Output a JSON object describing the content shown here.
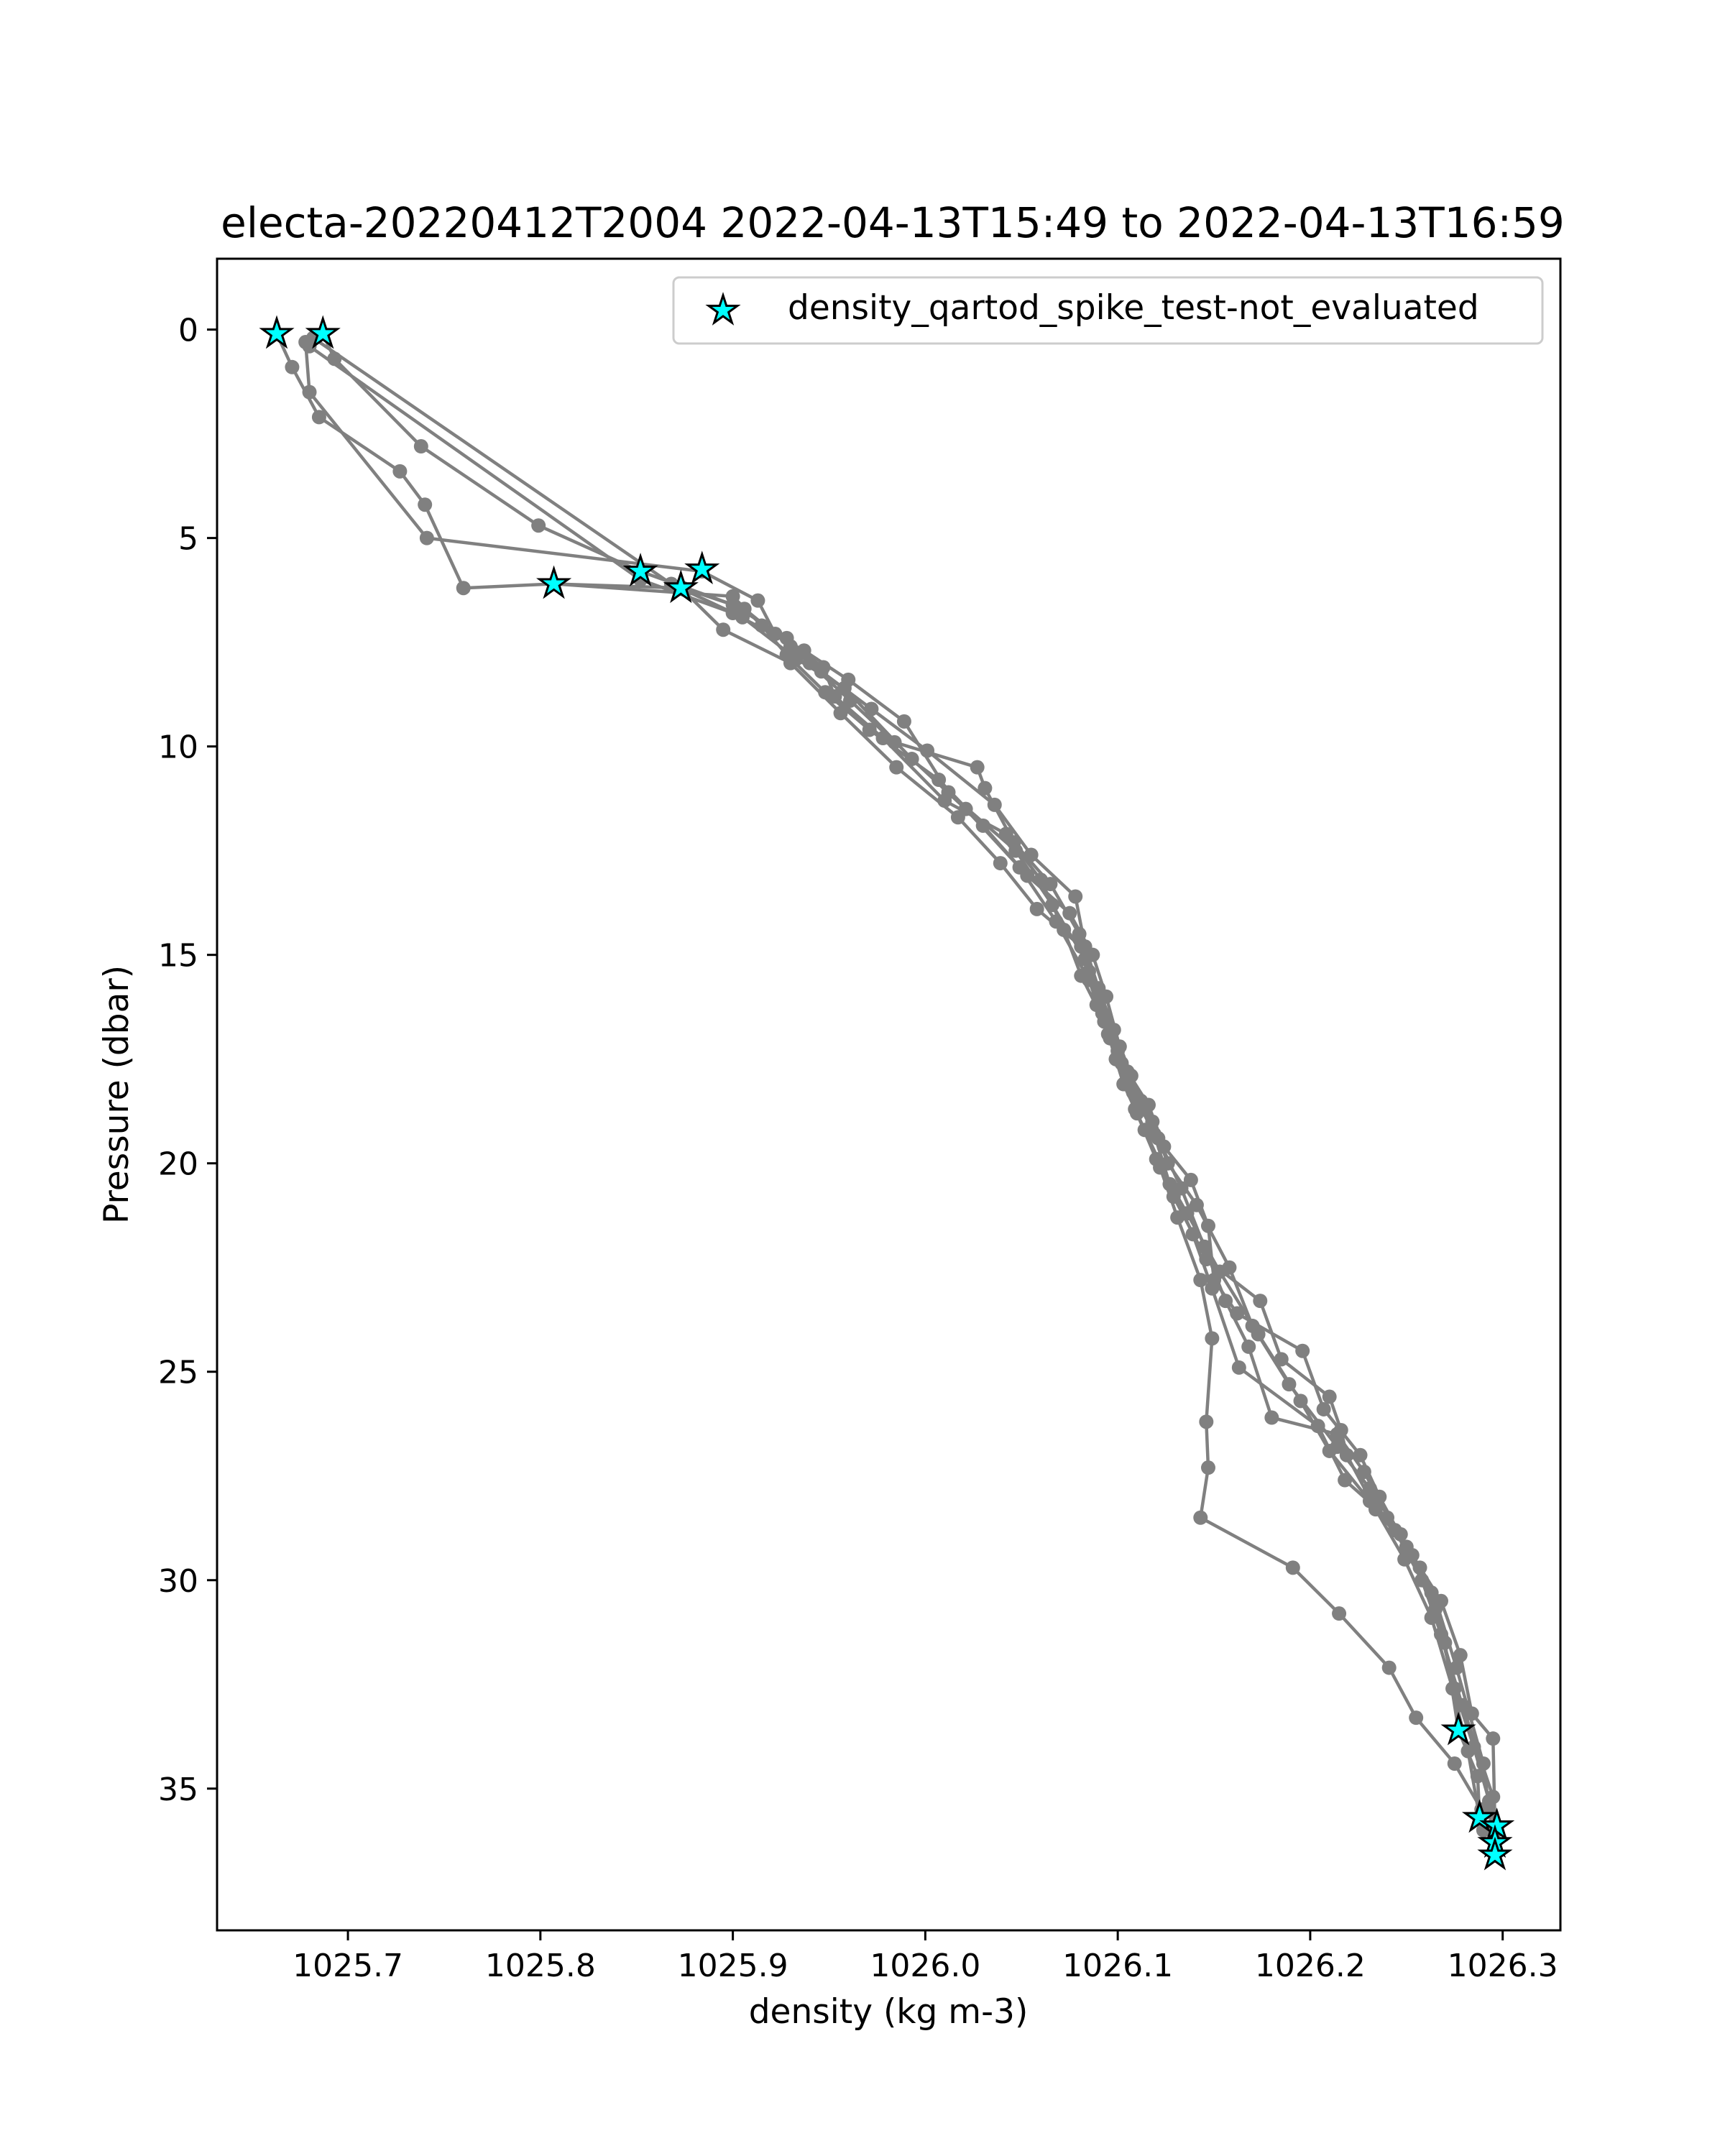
{
  "chart_data": {
    "type": "scatter",
    "title": "electa-20220412T2004 2022-04-13T15:49 to 2022-04-13T16:59",
    "xlabel": "density (kg m-3)",
    "ylabel": "Pressure (dbar)",
    "xlim": [
      1025.632,
      1026.33
    ],
    "ylim": [
      38.4,
      -1.7
    ],
    "y_inverted": true,
    "grid": false,
    "legend_position": "top-right",
    "x_ticks": [
      "1025.7",
      "1025.8",
      "1025.9",
      "1026.0",
      "1026.1",
      "1026.2",
      "1026.3"
    ],
    "y_ticks": [
      "0",
      "5",
      "10",
      "15",
      "20",
      "25",
      "30",
      "35"
    ],
    "colors": {
      "profile_line": "#808080",
      "flag_marker": "#00ffff",
      "marker_edge": "#000000"
    },
    "series": [
      {
        "kind": "line",
        "points": [
          [
            1025.687,
            0.1
          ],
          [
            1025.693,
            0.7
          ],
          [
            1025.738,
            2.8
          ],
          [
            1025.799,
            4.7
          ],
          [
            1025.852,
            5.8
          ],
          [
            1025.906,
            6.7
          ],
          [
            1025.93,
            7.6
          ],
          [
            1025.94,
            8.0
          ],
          [
            1025.961,
            8.9
          ],
          [
            1025.984,
            9.9
          ],
          [
            1026.027,
            10.5
          ],
          [
            1026.031,
            11.0
          ],
          [
            1026.046,
            12.3
          ],
          [
            1026.065,
            13.3
          ],
          [
            1026.08,
            14.5
          ],
          [
            1026.085,
            15.4
          ],
          [
            1026.089,
            16.2
          ],
          [
            1026.096,
            17.0
          ],
          [
            1026.105,
            17.8
          ],
          [
            1026.116,
            18.6
          ],
          [
            1026.124,
            19.6
          ],
          [
            1026.138,
            20.4
          ],
          [
            1026.147,
            21.5
          ],
          [
            1026.15,
            22.8
          ],
          [
            1026.162,
            23.6
          ],
          [
            1026.196,
            24.5
          ],
          [
            1026.207,
            25.9
          ],
          [
            1026.226,
            27.0
          ],
          [
            1026.236,
            28.0
          ],
          [
            1026.25,
            29.2
          ],
          [
            1026.263,
            30.3
          ],
          [
            1026.27,
            31.5
          ],
          [
            1026.277,
            33.6
          ],
          [
            1026.287,
            34.7
          ],
          [
            1026.288,
            35.7
          ]
        ]
      },
      {
        "kind": "line",
        "points": [
          [
            1025.663,
            0.1
          ],
          [
            1025.671,
            0.9
          ],
          [
            1025.685,
            2.1
          ],
          [
            1025.727,
            3.4
          ],
          [
            1025.74,
            4.2
          ],
          [
            1025.76,
            6.2
          ],
          [
            1025.807,
            6.1
          ],
          [
            1025.874,
            6.2
          ],
          [
            1025.9,
            6.6
          ],
          [
            1025.928,
            7.4
          ],
          [
            1025.946,
            8.2
          ],
          [
            1025.972,
            9.1
          ],
          [
            1026.001,
            10.1
          ],
          [
            1026.036,
            11.4
          ],
          [
            1026.055,
            12.6
          ],
          [
            1026.078,
            13.6
          ],
          [
            1026.083,
            14.8
          ],
          [
            1026.09,
            15.8
          ],
          [
            1026.098,
            16.8
          ],
          [
            1026.107,
            17.9
          ],
          [
            1026.118,
            19.0
          ],
          [
            1026.126,
            20.0
          ],
          [
            1026.141,
            21.0
          ],
          [
            1026.158,
            22.5
          ],
          [
            1026.17,
            23.9
          ],
          [
            1026.189,
            25.3
          ],
          [
            1026.214,
            26.8
          ],
          [
            1026.231,
            27.8
          ],
          [
            1026.247,
            28.9
          ],
          [
            1026.265,
            30.7
          ],
          [
            1026.275,
            32.6
          ],
          [
            1026.285,
            34.0
          ],
          [
            1026.293,
            35.3
          ],
          [
            1026.297,
            36.0
          ]
        ]
      },
      {
        "kind": "line",
        "points": [
          [
            1025.678,
            0.3
          ],
          [
            1025.68,
            1.5
          ],
          [
            1025.741,
            5.0
          ],
          [
            1025.884,
            5.8
          ],
          [
            1025.913,
            6.5
          ],
          [
            1025.922,
            7.3
          ],
          [
            1025.947,
            8.1
          ],
          [
            1025.953,
            8.8
          ],
          [
            1025.978,
            9.8
          ],
          [
            1026.01,
            11.3
          ],
          [
            1026.042,
            12.1
          ],
          [
            1026.06,
            13.2
          ],
          [
            1026.072,
            14.4
          ],
          [
            1026.081,
            15.5
          ],
          [
            1026.093,
            16.6
          ],
          [
            1026.102,
            17.6
          ],
          [
            1026.112,
            18.5
          ],
          [
            1026.121,
            19.4
          ],
          [
            1026.133,
            20.6
          ],
          [
            1026.145,
            22.0
          ],
          [
            1026.156,
            23.3
          ],
          [
            1026.168,
            24.4
          ],
          [
            1026.18,
            26.1
          ],
          [
            1026.214,
            26.5
          ],
          [
            1026.228,
            27.4
          ],
          [
            1026.244,
            28.8
          ],
          [
            1026.258,
            30.0
          ],
          [
            1026.268,
            31.3
          ],
          [
            1026.279,
            33.0
          ],
          [
            1026.295,
            35.2
          ],
          [
            1026.296,
            36.3
          ]
        ]
      },
      {
        "kind": "line",
        "points": [
          [
            1025.682,
            0.2
          ],
          [
            1025.868,
            6.1
          ],
          [
            1025.905,
            6.9
          ],
          [
            1025.933,
            7.9
          ],
          [
            1025.958,
            8.6
          ],
          [
            1025.993,
            10.3
          ],
          [
            1026.021,
            11.5
          ],
          [
            1026.049,
            12.9
          ],
          [
            1026.068,
            14.2
          ],
          [
            1026.085,
            15.6
          ],
          [
            1026.095,
            16.9
          ],
          [
            1026.103,
            18.1
          ],
          [
            1026.114,
            19.2
          ],
          [
            1026.127,
            20.5
          ],
          [
            1026.139,
            21.7
          ],
          [
            1026.149,
            23.0
          ],
          [
            1026.163,
            24.9
          ],
          [
            1026.204,
            26.3
          ],
          [
            1026.218,
            27.6
          ],
          [
            1026.24,
            28.5
          ],
          [
            1026.257,
            29.7
          ],
          [
            1026.266,
            30.6
          ],
          [
            1026.276,
            32.1
          ],
          [
            1026.29,
            34.4
          ],
          [
            1026.296,
            36.6
          ]
        ]
      },
      {
        "kind": "line",
        "points": [
          [
            1025.68,
            0.4
          ],
          [
            1025.852,
            6.0
          ],
          [
            1025.9,
            6.8
          ],
          [
            1025.937,
            7.7
          ],
          [
            1025.96,
            8.4
          ],
          [
            1025.989,
            9.4
          ],
          [
            1026.012,
            11.1
          ],
          [
            1026.047,
            12.5
          ],
          [
            1026.066,
            13.8
          ],
          [
            1026.083,
            15.1
          ],
          [
            1026.092,
            16.4
          ],
          [
            1026.099,
            17.5
          ],
          [
            1026.11,
            18.8
          ],
          [
            1026.122,
            20.1
          ],
          [
            1026.131,
            21.3
          ],
          [
            1026.143,
            22.8
          ],
          [
            1026.149,
            24.2
          ],
          [
            1026.146,
            26.2
          ],
          [
            1026.147,
            27.3
          ],
          [
            1026.143,
            28.5
          ],
          [
            1026.191,
            29.7
          ],
          [
            1026.215,
            30.8
          ],
          [
            1026.241,
            32.1
          ],
          [
            1026.255,
            33.3
          ],
          [
            1026.275,
            34.4
          ],
          [
            1026.289,
            35.5
          ],
          [
            1026.29,
            36.0
          ]
        ]
      },
      {
        "kind": "line",
        "points": [
          [
            1025.807,
            6.1
          ],
          [
            1025.9,
            6.4
          ],
          [
            1025.915,
            7.1
          ],
          [
            1025.928,
            7.8
          ],
          [
            1025.948,
            8.7
          ],
          [
            1025.971,
            9.6
          ],
          [
            1026.007,
            10.8
          ],
          [
            1026.03,
            11.9
          ],
          [
            1026.053,
            13.1
          ],
          [
            1026.075,
            14.0
          ],
          [
            1026.087,
            15.0
          ],
          [
            1026.094,
            16.0
          ],
          [
            1026.101,
            17.2
          ],
          [
            1026.108,
            18.3
          ],
          [
            1026.119,
            19.3
          ],
          [
            1026.129,
            20.8
          ],
          [
            1026.146,
            22.3
          ],
          [
            1026.174,
            23.3
          ],
          [
            1026.185,
            24.7
          ],
          [
            1026.21,
            25.6
          ],
          [
            1026.216,
            26.4
          ],
          [
            1026.219,
            27.0
          ],
          [
            1026.234,
            28.3
          ],
          [
            1026.249,
            29.5
          ],
          [
            1026.263,
            30.9
          ],
          [
            1026.274,
            32.6
          ],
          [
            1026.282,
            34.1
          ],
          [
            1026.288,
            35.7
          ]
        ]
      },
      {
        "kind": "line",
        "points": [
          [
            1025.873,
            6.2
          ],
          [
            1025.895,
            7.2
          ],
          [
            1025.93,
            8.0
          ],
          [
            1025.956,
            9.2
          ],
          [
            1025.985,
            10.5
          ],
          [
            1026.017,
            11.7
          ],
          [
            1026.039,
            12.8
          ],
          [
            1026.058,
            13.9
          ],
          [
            1026.081,
            14.8
          ],
          [
            1026.09,
            15.9
          ],
          [
            1026.1,
            17.3
          ],
          [
            1026.109,
            18.7
          ],
          [
            1026.12,
            19.9
          ],
          [
            1026.136,
            21.2
          ],
          [
            1026.153,
            22.6
          ],
          [
            1026.173,
            24.1
          ],
          [
            1026.195,
            25.7
          ],
          [
            1026.21,
            26.9
          ],
          [
            1026.231,
            28.1
          ],
          [
            1026.253,
            29.4
          ],
          [
            1026.268,
            30.5
          ],
          [
            1026.278,
            31.8
          ],
          [
            1026.284,
            33.2
          ],
          [
            1026.295,
            33.8
          ],
          [
            1026.296,
            35.9
          ]
        ]
      }
    ],
    "flagged_points": {
      "label": "density_qartod_spike_test-not_evaluated",
      "marker": "star",
      "points": [
        [
          1025.663,
          0.1
        ],
        [
          1025.687,
          0.1
        ],
        [
          1025.852,
          5.8
        ],
        [
          1025.884,
          5.75
        ],
        [
          1025.807,
          6.1
        ],
        [
          1025.873,
          6.2
        ],
        [
          1026.277,
          33.6
        ],
        [
          1026.288,
          35.7
        ],
        [
          1026.297,
          35.9
        ],
        [
          1026.296,
          36.3
        ],
        [
          1026.296,
          36.6
        ]
      ]
    }
  }
}
